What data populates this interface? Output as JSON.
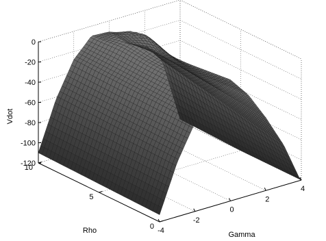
{
  "chart_data": {
    "type": "surface",
    "title": "",
    "xlabel": "Gamma",
    "ylabel": "Rho",
    "zlabel": "Vdot",
    "xlim": [
      -4,
      4
    ],
    "ylim": [
      0,
      10
    ],
    "zlim": [
      -120,
      0
    ],
    "x_ticks": [
      -4,
      -2,
      0,
      2,
      4
    ],
    "x_tick_labels": [
      "-4",
      "-2",
      "0",
      "2",
      "4"
    ],
    "y_ticks": [
      0,
      5,
      10
    ],
    "y_tick_labels": [
      "0",
      "5",
      "10"
    ],
    "z_ticks": [
      0,
      -20,
      -40,
      -60,
      -80,
      -100,
      -120
    ],
    "z_tick_labels": [
      "0",
      "-20",
      "-40",
      "-60",
      "-80",
      "-100",
      "-120"
    ],
    "grid": true,
    "box": true,
    "colors": {
      "mesh_dark": "#1a1a1a",
      "mesh_light": "#d6d6d6",
      "grid": "#555555"
    },
    "surface_profile": {
      "gamma": [
        -4,
        -3,
        -2,
        -1,
        0,
        1,
        2,
        3,
        4
      ],
      "vdot_at_rho_10": [
        -110,
        -62,
        -28,
        -10,
        -13,
        -28,
        -35,
        -55,
        -118
      ],
      "vdot_at_rho_0": [
        -113,
        -66,
        -32,
        -11,
        0,
        -20,
        -48,
        -80,
        -122
      ]
    }
  }
}
